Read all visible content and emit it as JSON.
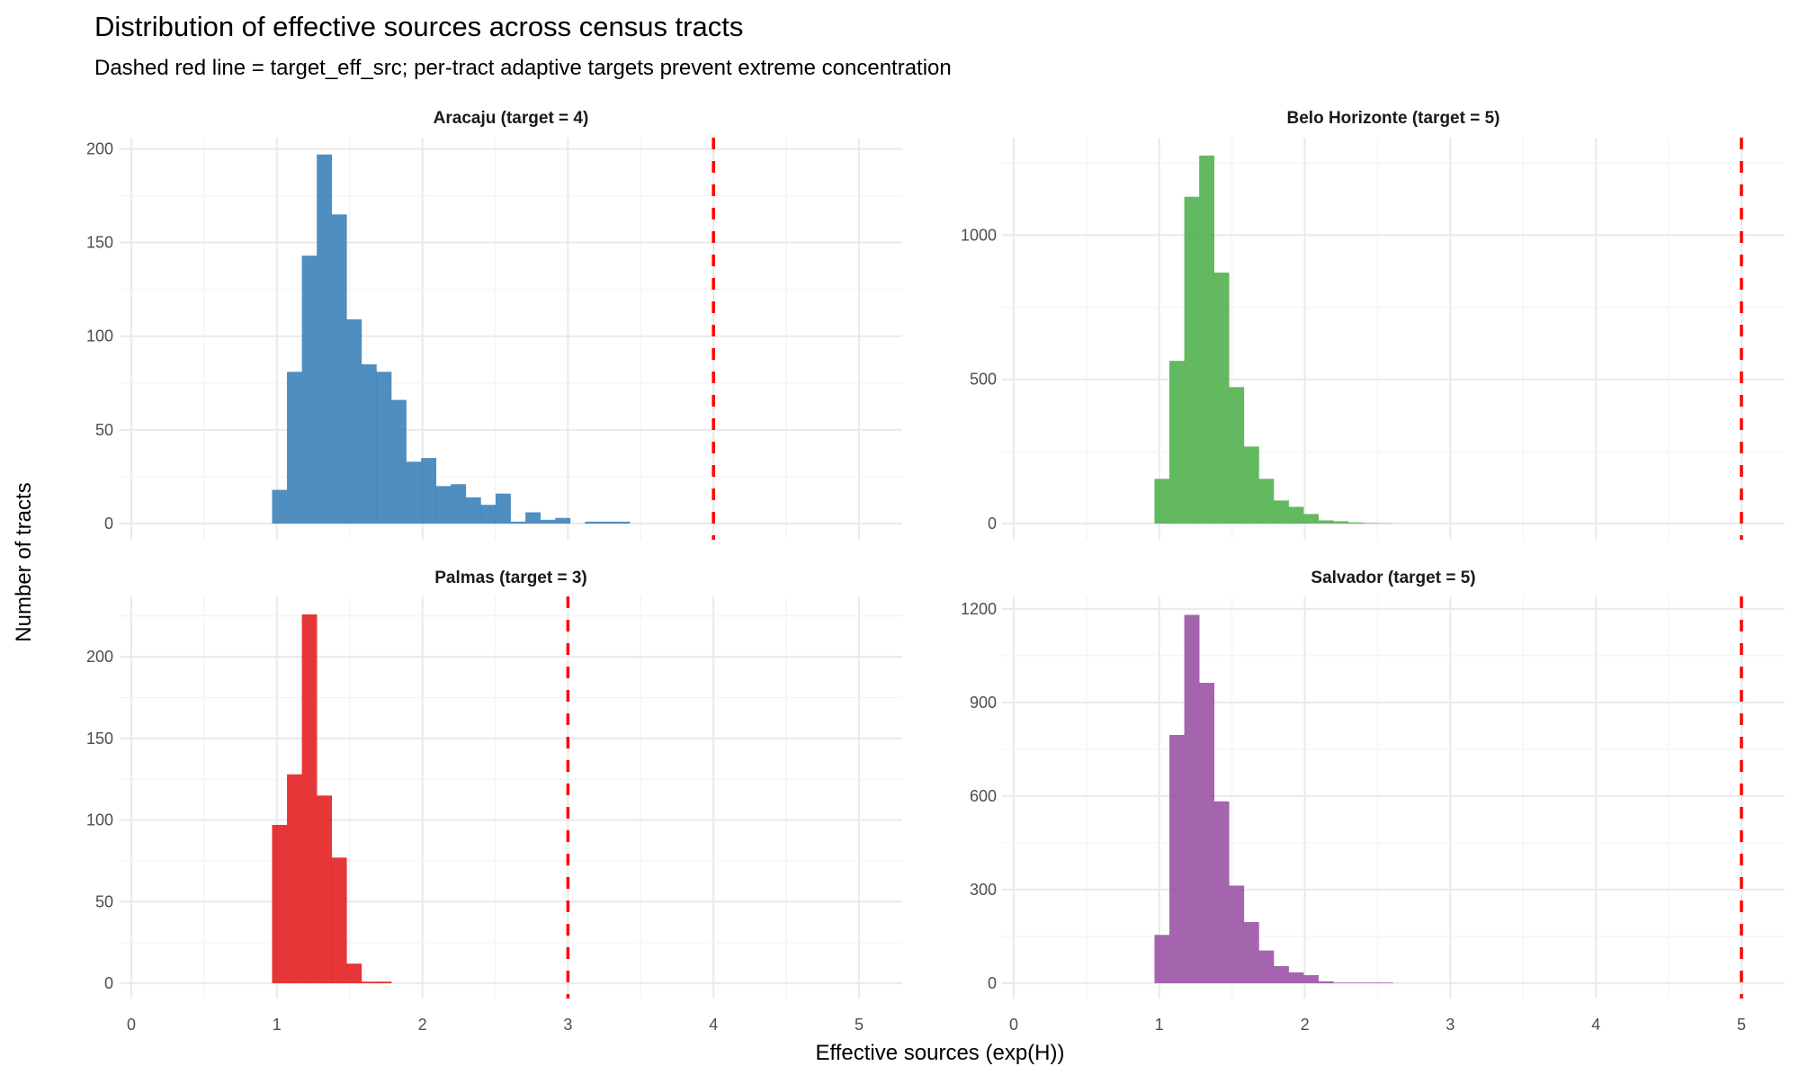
{
  "chart_data": {
    "type": "bar",
    "title": "Distribution of effective sources across census tracts",
    "subtitle": "Dashed red line = target_eff_src; per-tract adaptive targets prevent extreme concentration",
    "xlabel": "Effective sources (exp(H))",
    "ylabel": "Number of tracts",
    "xlim": [
      0,
      5
    ],
    "x_ticks": [
      "0",
      "1",
      "2",
      "3",
      "4",
      "5"
    ],
    "grid": true,
    "bin_start": 0.967,
    "bin_width": 0.1024,
    "reference_line": {
      "style": "dashed",
      "color": "#FF0000"
    },
    "panels": [
      {
        "strip": "Aracaju (target = 4)",
        "target": 4,
        "color": "#377EB8",
        "ylim": [
          0,
          206
        ],
        "y_ticks": [
          0,
          50,
          100,
          150,
          200
        ],
        "counts": [
          18,
          81,
          143,
          197,
          165,
          109,
          85,
          81,
          66,
          33,
          35,
          20,
          21,
          14,
          10,
          16,
          1,
          6,
          2,
          3,
          0,
          1,
          1,
          1
        ]
      },
      {
        "strip": "Belo Horizonte (target = 5)",
        "target": 5,
        "color": "#4DAF4A",
        "ylim": [
          0,
          1338
        ],
        "y_ticks": [
          0,
          500,
          1000
        ],
        "counts": [
          155,
          564,
          1133,
          1276,
          870,
          473,
          267,
          155,
          80,
          58,
          33,
          11,
          8,
          4,
          2,
          1
        ]
      },
      {
        "strip": "Palmas (target = 3)",
        "target": 3,
        "color": "#E41A1C",
        "ylim": [
          0,
          237
        ],
        "y_ticks": [
          0,
          50,
          100,
          150,
          200
        ],
        "counts": [
          97,
          128,
          226,
          115,
          77,
          12,
          1,
          1
        ]
      },
      {
        "strip": "Salvador (target = 5)",
        "target": 5,
        "color": "#984EA3",
        "ylim": [
          0,
          1240
        ],
        "y_ticks": [
          0,
          300,
          600,
          900,
          1200
        ],
        "counts": [
          155,
          796,
          1181,
          963,
          583,
          313,
          196,
          105,
          55,
          35,
          26,
          6,
          2,
          2,
          2,
          2
        ]
      }
    ]
  }
}
